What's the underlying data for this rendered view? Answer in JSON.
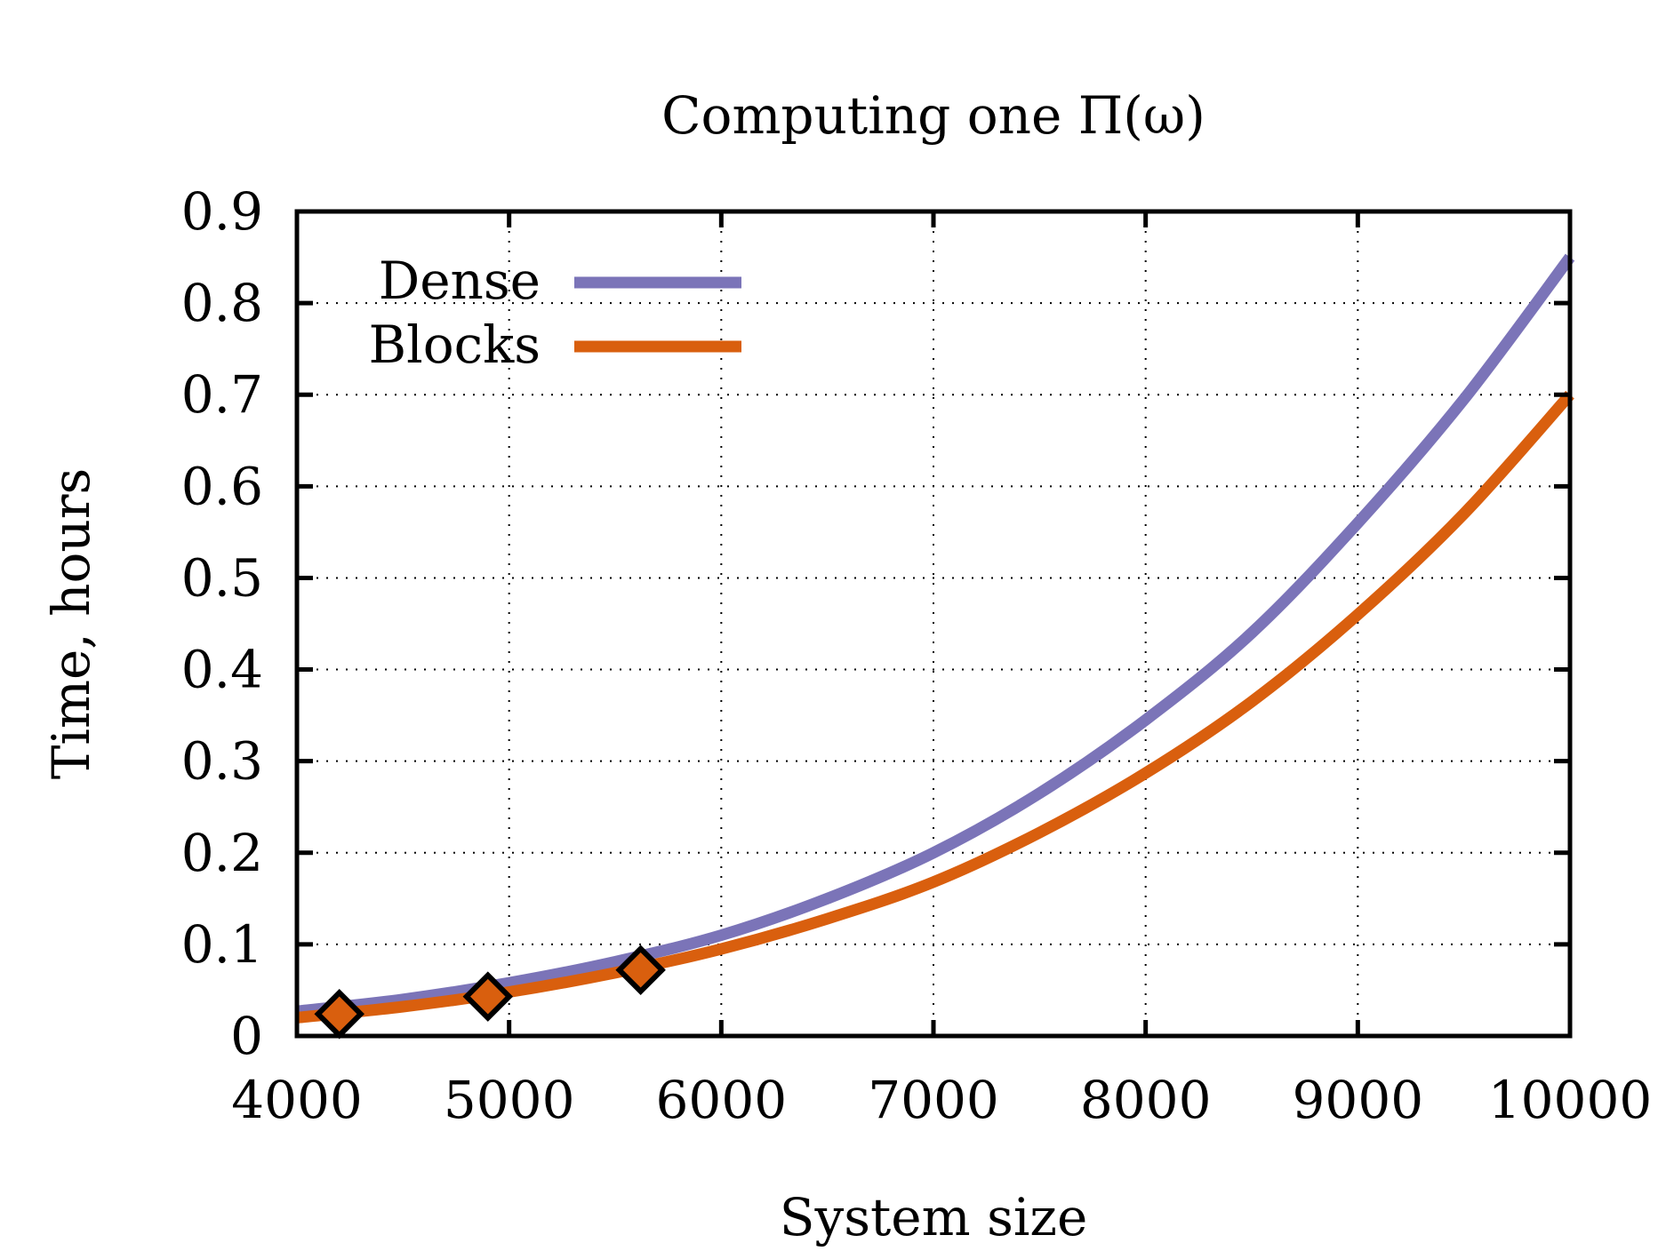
{
  "colors": {
    "dense": "#7b74b8",
    "blocks": "#d95f0e",
    "marker_fill": "#d95f0e",
    "marker_stroke": "#000000",
    "grid": "#000000"
  },
  "chart_data": {
    "type": "line",
    "title": "Computing one Π(ω)",
    "xlabel": "System size",
    "ylabel": "Time, hours",
    "xlim": [
      4000,
      10000
    ],
    "ylim": [
      0,
      0.9
    ],
    "grid": true,
    "legend_position": "top-left",
    "x_ticks": [
      4000,
      5000,
      6000,
      7000,
      8000,
      9000,
      10000
    ],
    "x_tick_labels": [
      "4000",
      "5000",
      "6000",
      "7000",
      "8000",
      "9000",
      "10000"
    ],
    "y_ticks": [
      0,
      0.1,
      0.2,
      0.3,
      0.4,
      0.5,
      0.6,
      0.7,
      0.8,
      0.9
    ],
    "y_tick_labels": [
      "0",
      "0.1",
      "0.2",
      "0.3",
      "0.4",
      "0.5",
      "0.6",
      "0.7",
      "0.8",
      "0.9"
    ],
    "series": [
      {
        "name": "Dense",
        "x": [
          4000,
          4500,
          5000,
          5500,
          6000,
          6500,
          7000,
          7500,
          8000,
          8500,
          9000,
          9500,
          10000
        ],
        "values": [
          0.027,
          0.04,
          0.058,
          0.081,
          0.11,
          0.15,
          0.2,
          0.265,
          0.345,
          0.44,
          0.56,
          0.695,
          0.85
        ]
      },
      {
        "name": "Blocks",
        "x": [
          4000,
          4500,
          5000,
          5500,
          6000,
          6500,
          7000,
          7500,
          8000,
          8500,
          9000,
          9500,
          10000
        ],
        "values": [
          0.02,
          0.032,
          0.048,
          0.069,
          0.095,
          0.128,
          0.168,
          0.222,
          0.287,
          0.365,
          0.46,
          0.57,
          0.7
        ]
      }
    ],
    "markers": {
      "x": [
        4200,
        4900,
        5620
      ],
      "values": [
        0.024,
        0.043,
        0.072
      ]
    }
  }
}
